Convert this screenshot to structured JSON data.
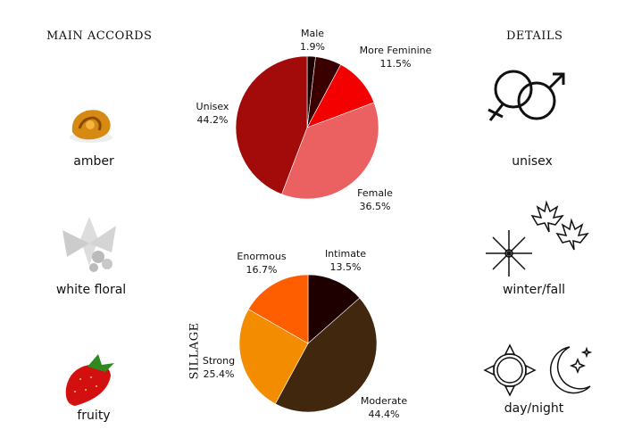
{
  "main_accords": {
    "heading": "MAIN ACCORDS",
    "items": [
      {
        "label": "amber",
        "icon": "amber-icon"
      },
      {
        "label": "white floral",
        "icon": "white-floral-icon"
      },
      {
        "label": "fruity",
        "icon": "strawberry-icon"
      }
    ]
  },
  "details": {
    "heading": "DETAILS",
    "items": [
      {
        "label": "unisex",
        "icon": "gender-symbols-icon"
      },
      {
        "label": "winter/fall",
        "icon": "snowflake-maple-leaf-icon"
      },
      {
        "label": "day/night",
        "icon": "sun-moon-icon"
      }
    ]
  },
  "chart_data": [
    {
      "type": "pie",
      "slices": [
        {
          "name": "Male",
          "value": 1.9,
          "label": "1.9%",
          "color": "#1c0000"
        },
        {
          "name": "",
          "value": 5.9,
          "label": "",
          "color": "#3a0000"
        },
        {
          "name": "More Feminine",
          "value": 11.5,
          "label": "11.5%",
          "color": "#f50000"
        },
        {
          "name": "Female",
          "value": 36.5,
          "label": "36.5%",
          "color": "#eb6060"
        },
        {
          "name": "Unisex",
          "value": 44.2,
          "label": "44.2%",
          "color": "#a30a0a"
        }
      ]
    },
    {
      "type": "pie",
      "title": "SILLAGE",
      "slices": [
        {
          "name": "Intimate",
          "value": 13.5,
          "label": "13.5%",
          "color": "#1e0000"
        },
        {
          "name": "Moderate",
          "value": 44.4,
          "label": "44.4%",
          "color": "#40270e"
        },
        {
          "name": "Strong",
          "value": 25.4,
          "label": "25.4%",
          "color": "#f48c00"
        },
        {
          "name": "Enormous",
          "value": 16.7,
          "label": "16.7%",
          "color": "#ff5e00"
        }
      ]
    }
  ]
}
